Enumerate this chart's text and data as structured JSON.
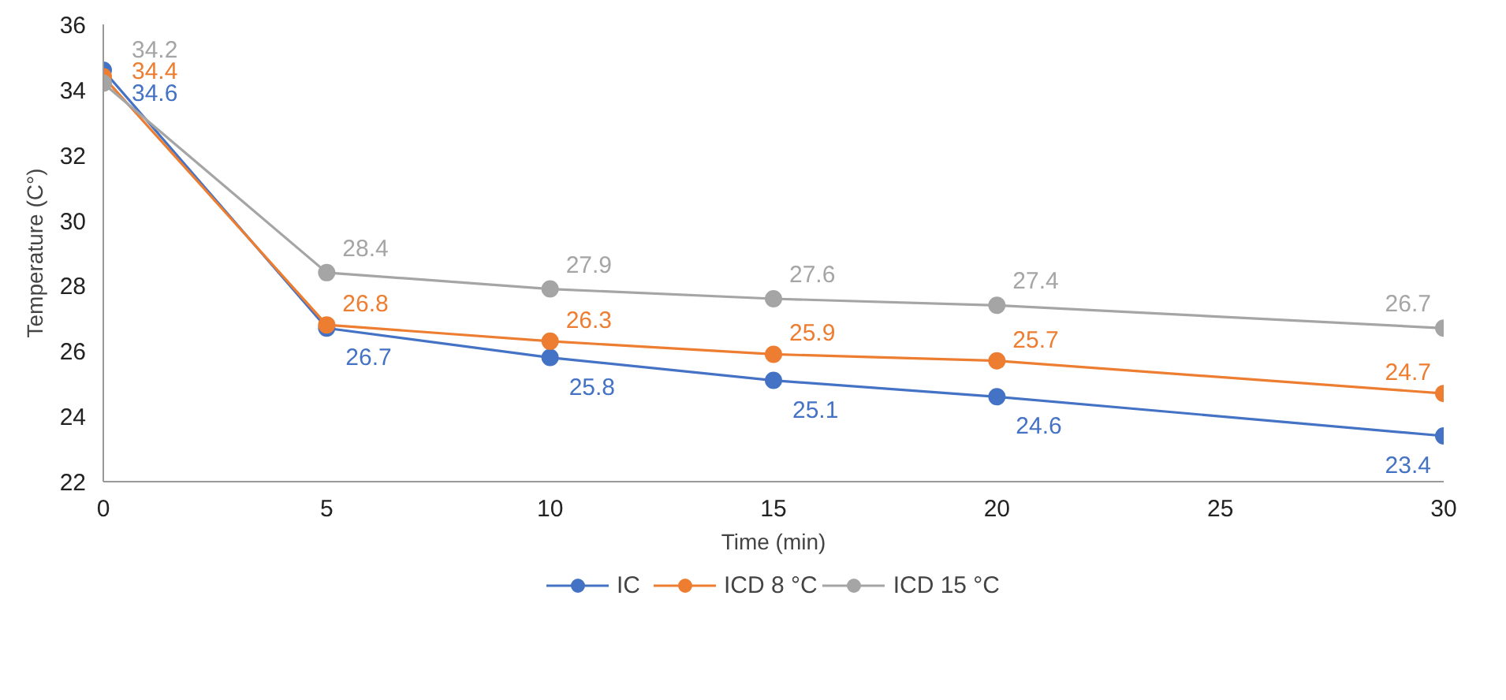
{
  "chart_data": {
    "type": "line",
    "xlabel": "Time (min)",
    "ylabel": "Temperature (C°)",
    "x": [
      0,
      5,
      10,
      15,
      20,
      30
    ],
    "series": [
      {
        "name": "IC",
        "color": "#4472c4",
        "values": [
          34.6,
          26.7,
          25.8,
          25.1,
          24.6,
          23.4
        ]
      },
      {
        "name": "ICD 8 °C",
        "color": "#ed7d31",
        "values": [
          34.4,
          26.8,
          26.3,
          25.9,
          25.7,
          24.7
        ]
      },
      {
        "name": "ICD 15 °C",
        "color": "#a5a5a5",
        "values": [
          34.2,
          28.4,
          27.9,
          27.6,
          27.4,
          26.7
        ]
      }
    ],
    "xlim": [
      0,
      30
    ],
    "xticks": [
      0,
      5,
      10,
      15,
      20,
      25,
      30
    ],
    "ylim": [
      22,
      36
    ],
    "yticks": [
      22,
      24,
      26,
      28,
      30,
      32,
      34,
      36
    ],
    "grid": false,
    "legend": "bottom",
    "marker": "circle",
    "line_style": "solid",
    "data_labels": true
  }
}
